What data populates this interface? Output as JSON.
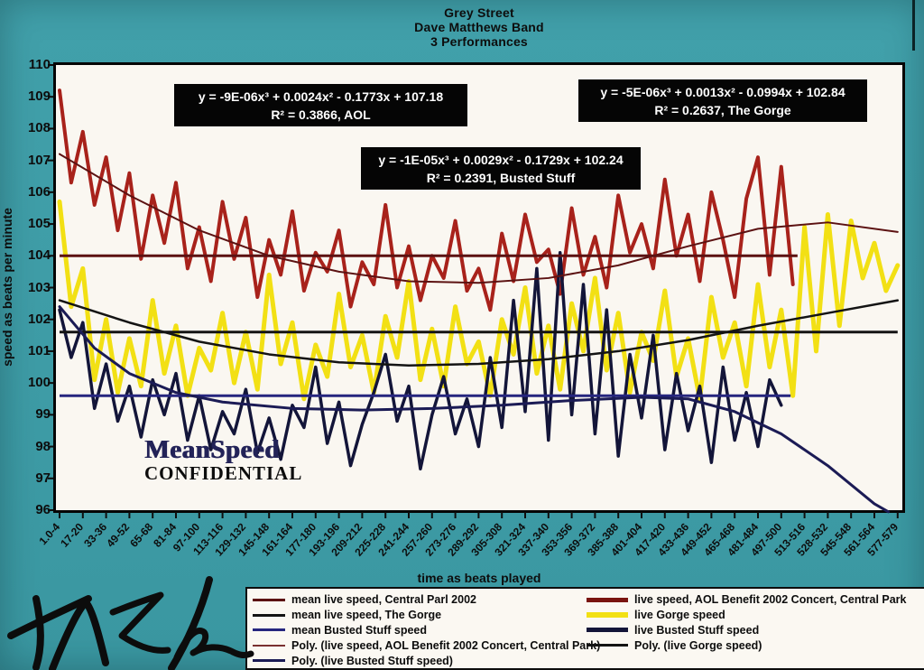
{
  "title": {
    "line1": "Grey Street",
    "line2": "Dave Matthews Band",
    "line3": "3 Performances"
  },
  "watermark": {
    "line1": "MeanSpeed",
    "line2": "CONFIDENTIAL"
  },
  "colors": {
    "background_teal": "#3e9ca6",
    "plot_background": "#faf7f1",
    "aol_live_red": "#a8221b",
    "central_park_maroon": "#5c1212",
    "gorge_yellow": "#f2e014",
    "busted_live_navy": "#131539",
    "busted_mean_navy": "#26267f",
    "busted_poly_navy": "#1b1b55",
    "gorge_black": "#141414",
    "equation_box_bg": "#050505",
    "equation_box_text": "#ffffff"
  },
  "chart_data": {
    "type": "line",
    "title": "Grey Street / Dave Matthews Band / 3 Performances",
    "xlabel": "time as beats played",
    "ylabel": "speed as beats per minute",
    "ylim": [
      96,
      110
    ],
    "grid": false,
    "legend_position": "bottom",
    "y_ticks": [
      110,
      109,
      108,
      107,
      106,
      105,
      104,
      103,
      102,
      101,
      100,
      99,
      98,
      97,
      96
    ],
    "x_ticks": [
      "1.0-4",
      "17-20",
      "33-36",
      "49-52",
      "65-68",
      "81-84",
      "97-100",
      "113-116",
      "129-132",
      "145-148",
      "161-164",
      "177-180",
      "193-196",
      "209-212",
      "225-228",
      "241-244",
      "257-260",
      "273-276",
      "289-292",
      "305-308",
      "321-324",
      "337-340",
      "353-356",
      "369-372",
      "385-388",
      "401-404",
      "417-420",
      "433-436",
      "449-452",
      "465-468",
      "481-484",
      "497-500",
      "513-516",
      "528-532",
      "545-548",
      "561-564",
      "577-579"
    ],
    "annotations": [
      {
        "id": "aol",
        "line1": "y = -9E-06x³ + 0.0024x² - 0.1773x + 107.18",
        "line2": "R² = 0.3866, AOL"
      },
      {
        "id": "gorge",
        "line1": "y = -5E-06x³ + 0.0013x² - 0.0994x + 102.84",
        "line2": "R² = 0.2637, The Gorge"
      },
      {
        "id": "busted",
        "line1": "y = -1E-05x³ + 0.0029x² - 0.1729x + 102.24",
        "line2": "R² = 0.2391, Busted Stuff"
      }
    ],
    "series": [
      {
        "name": "live speed, AOL Benefit 2002 Concert, Central Park",
        "kind": "live",
        "color": "#a8221b",
        "width": 4,
        "t_step": 0.5,
        "values": [
          109.2,
          106.3,
          107.9,
          105.6,
          107.1,
          104.8,
          106.6,
          103.9,
          105.9,
          104.4,
          106.3,
          103.6,
          104.9,
          103.2,
          105.7,
          103.9,
          105.2,
          102.7,
          104.5,
          103.4,
          105.4,
          102.9,
          104.1,
          103.5,
          104.8,
          102.4,
          103.8,
          103.1,
          105.6,
          103.0,
          104.3,
          102.6,
          104.0,
          103.3,
          105.1,
          102.9,
          103.6,
          102.3,
          104.7,
          103.2,
          105.3,
          103.8,
          104.2,
          102.8,
          105.5,
          103.4,
          104.6,
          103.0,
          105.9,
          104.1,
          105.0,
          103.6,
          106.4,
          104.0,
          105.3,
          103.2,
          106.0,
          104.5,
          102.7,
          105.8,
          107.1,
          103.4,
          106.8,
          103.1
        ]
      },
      {
        "name": "live Gorge speed",
        "kind": "live",
        "color": "#f2e014",
        "width": 5,
        "t_step": 0.5,
        "values": [
          105.7,
          102.4,
          103.6,
          100.1,
          102.0,
          99.7,
          101.4,
          99.9,
          102.6,
          100.3,
          101.8,
          99.6,
          101.1,
          100.4,
          102.2,
          100.0,
          101.6,
          99.8,
          103.4,
          100.6,
          101.9,
          99.5,
          101.2,
          100.2,
          102.8,
          100.5,
          101.5,
          99.7,
          102.1,
          100.8,
          103.2,
          100.1,
          101.7,
          99.9,
          102.4,
          100.6,
          101.3,
          99.6,
          102.0,
          100.9,
          103.0,
          100.3,
          101.8,
          99.8,
          102.5,
          101.0,
          103.3,
          100.4,
          102.2,
          99.7,
          101.6,
          100.7,
          102.9,
          100.2,
          101.4,
          99.5,
          102.7,
          100.8,
          101.9,
          99.9,
          103.1,
          100.5,
          102.3,
          99.6,
          104.9,
          101.0,
          105.3,
          101.8,
          105.1,
          103.3,
          104.4,
          102.9,
          103.7
        ]
      },
      {
        "name": "live Busted Stuff speed",
        "kind": "live",
        "color": "#131539",
        "width": 3.5,
        "t_step": 0.5,
        "values": [
          102.3,
          100.8,
          101.9,
          99.2,
          100.6,
          98.8,
          99.9,
          98.3,
          100.1,
          99.0,
          100.3,
          98.2,
          99.6,
          97.9,
          99.1,
          98.4,
          99.8,
          97.8,
          98.9,
          97.6,
          99.3,
          98.6,
          100.5,
          98.1,
          99.4,
          97.4,
          98.7,
          99.7,
          100.9,
          98.8,
          99.9,
          97.3,
          99.0,
          100.2,
          98.4,
          99.5,
          98.0,
          100.8,
          98.6,
          102.6,
          99.1,
          103.6,
          98.2,
          104.1,
          99.0,
          103.1,
          98.4,
          102.3,
          97.7,
          100.9,
          98.9,
          101.5,
          97.9,
          100.3,
          98.5,
          99.9,
          97.5,
          100.5,
          98.2,
          99.7,
          98.0,
          100.1,
          99.3
        ]
      },
      {
        "name": "mean live speed, Central Parl 2002",
        "kind": "mean",
        "color": "#5c1212",
        "width": 3,
        "value": 104.0,
        "t_range": [
          0,
          31.7
        ]
      },
      {
        "name": "mean live speed, The Gorge",
        "kind": "mean",
        "color": "#141414",
        "width": 3,
        "value": 101.6,
        "t_range": [
          0,
          36
        ]
      },
      {
        "name": "mean Busted Stuff speed",
        "kind": "mean",
        "color": "#26267f",
        "width": 3,
        "value": 99.6,
        "t_range": [
          0,
          31.4
        ]
      },
      {
        "name": "Poly. (live speed, AOL Benefit 2002 Concert, Central Park)",
        "kind": "poly",
        "color": "#5c1212",
        "width": 2,
        "points": [
          [
            0,
            107.2
          ],
          [
            3,
            105.9
          ],
          [
            6,
            104.8
          ],
          [
            9,
            104.0
          ],
          [
            12,
            103.5
          ],
          [
            15,
            103.2
          ],
          [
            18,
            103.15
          ],
          [
            21,
            103.3
          ],
          [
            24,
            103.7
          ],
          [
            27,
            104.3
          ],
          [
            30,
            104.85
          ],
          [
            33,
            105.05
          ],
          [
            36,
            104.75
          ]
        ]
      },
      {
        "name": "Poly. (live Gorge speed)",
        "kind": "poly",
        "color": "#141414",
        "width": 2.5,
        "points": [
          [
            0,
            102.6
          ],
          [
            3,
            101.9
          ],
          [
            6,
            101.3
          ],
          [
            9,
            100.9
          ],
          [
            12,
            100.65
          ],
          [
            15,
            100.55
          ],
          [
            18,
            100.6
          ],
          [
            21,
            100.75
          ],
          [
            24,
            101.0
          ],
          [
            27,
            101.35
          ],
          [
            30,
            101.8
          ],
          [
            33,
            102.2
          ],
          [
            36,
            102.6
          ]
        ]
      },
      {
        "name": "Poly. (live Busted Stuff speed)",
        "kind": "poly",
        "color": "#1b1b55",
        "width": 3,
        "points": [
          [
            0,
            102.4
          ],
          [
            1.5,
            101.1
          ],
          [
            3,
            100.3
          ],
          [
            5,
            99.7
          ],
          [
            7,
            99.4
          ],
          [
            10,
            99.2
          ],
          [
            13,
            99.15
          ],
          [
            16,
            99.2
          ],
          [
            19,
            99.3
          ],
          [
            22,
            99.45
          ],
          [
            25,
            99.55
          ],
          [
            27,
            99.5
          ],
          [
            29,
            99.1
          ],
          [
            31,
            98.4
          ],
          [
            33,
            97.4
          ],
          [
            35,
            96.2
          ],
          [
            35.6,
            95.95
          ]
        ]
      }
    ]
  },
  "legend": {
    "left_column": [
      {
        "label": "mean live speed, Central Parl 2002",
        "color": "#5c1212",
        "thickness": 3
      },
      {
        "label": "mean live speed, The Gorge",
        "color": "#141414",
        "thickness": 3
      },
      {
        "label": "mean Busted Stuff speed",
        "color": "#26267f",
        "thickness": 3
      },
      {
        "label": "Poly. (live speed, AOL Benefit 2002 Concert, Central Park)",
        "color": "#7a3030",
        "thickness": 2
      },
      {
        "label": "Poly. (live Busted Stuff speed)",
        "color": "#1b1b55",
        "thickness": 3
      }
    ],
    "right_column": [
      {
        "label": "live speed, AOL Benefit 2002 Concert, Central Park",
        "color": "#7a1410",
        "thickness": 5
      },
      {
        "label": "live Gorge speed",
        "color": "#f2e014",
        "thickness": 6
      },
      {
        "label": "live Busted Stuff speed",
        "color": "#131539",
        "thickness": 5
      },
      {
        "label": "Poly. (live Gorge speed)",
        "color": "#141414",
        "thickness": 3
      }
    ]
  }
}
